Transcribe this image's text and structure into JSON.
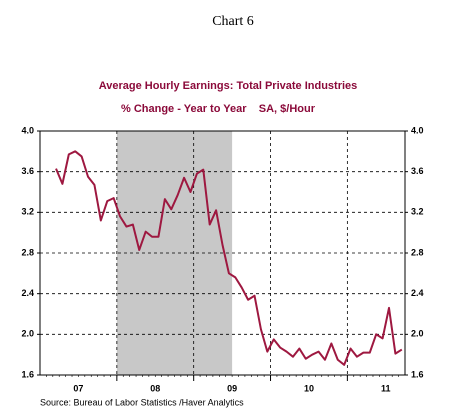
{
  "chart_data": {
    "type": "line",
    "title": "Chart 6",
    "subtitle": "Average Hourly Earnings: Total Private Industries",
    "subtitle2": "% Change - Year to Year    SA, $/Hour",
    "source": "Source:  Bureau of Labor Statistics /Haver Analytics",
    "categories": [
      null,
      null,
      null,
      null,
      null,
      "07",
      null,
      null,
      null,
      null,
      null,
      null,
      null,
      null,
      null,
      null,
      null,
      "08",
      null,
      null,
      null,
      null,
      null,
      null,
      null,
      null,
      null,
      null,
      null,
      "09",
      null,
      null,
      null,
      null,
      null,
      null,
      null,
      null,
      null,
      null,
      null,
      "10",
      null,
      null,
      null,
      null,
      null,
      null,
      null,
      null,
      null,
      null,
      null,
      "11",
      null,
      null,
      null
    ],
    "values": [
      null,
      null,
      3.63,
      3.48,
      3.77,
      3.8,
      3.75,
      3.55,
      3.47,
      3.12,
      3.31,
      3.34,
      3.16,
      3.06,
      3.08,
      2.83,
      3.01,
      2.96,
      2.96,
      3.33,
      3.23,
      3.37,
      3.54,
      3.4,
      3.58,
      3.62,
      3.08,
      3.22,
      2.88,
      2.6,
      2.56,
      2.46,
      2.34,
      2.38,
      2.05,
      1.83,
      1.95,
      1.87,
      1.83,
      1.78,
      1.86,
      1.76,
      1.8,
      1.83,
      1.75,
      1.91,
      1.75,
      1.7,
      1.86,
      1.78,
      1.82,
      1.82,
      2.0,
      1.96,
      2.26,
      1.81,
      1.85
    ],
    "color": "#9e1840",
    "shade": {
      "from": 12,
      "to": 29,
      "color": "#c8c8c8"
    },
    "ylim": [
      1.6,
      4.0
    ],
    "yticks": [
      1.6,
      {
        "value": 2.0,
        "label": "2.0"
      },
      2.4,
      2.8,
      3.2,
      3.6,
      {
        "value": 4.0,
        "label": "4.0"
      }
    ],
    "grid": true
  }
}
